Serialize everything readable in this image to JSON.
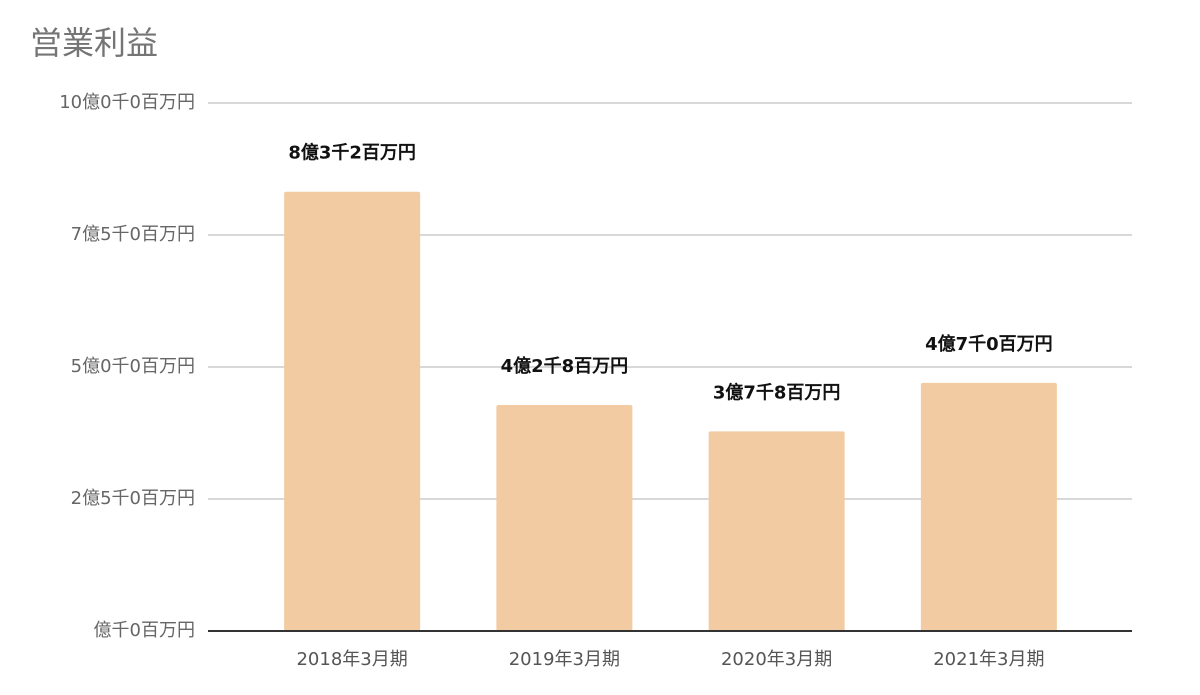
{
  "chart_data": {
    "type": "bar",
    "title": "営業利益",
    "categories": [
      "2018年3月期",
      "2019年3月期",
      "2020年3月期",
      "2021年3月期"
    ],
    "values": [
      832000000,
      428000000,
      378000000,
      470000000
    ],
    "value_labels": [
      "8億3千2百万円",
      "4億2千8百万円",
      "3億7千8百万円",
      "4億7千0百万円"
    ],
    "color": "#f2cba2",
    "ylim": [
      0,
      1000000000
    ],
    "yticks": [
      {
        "value": 0,
        "label": "億千0百万円"
      },
      {
        "value": 250000000,
        "label": "2億5千0百万円"
      },
      {
        "value": 500000000,
        "label": "5億0千0百万円"
      },
      {
        "value": 750000000,
        "label": "7億5千0百万円"
      },
      {
        "value": 1000000000,
        "label": "10億0千0百万円"
      }
    ],
    "grid": true
  }
}
